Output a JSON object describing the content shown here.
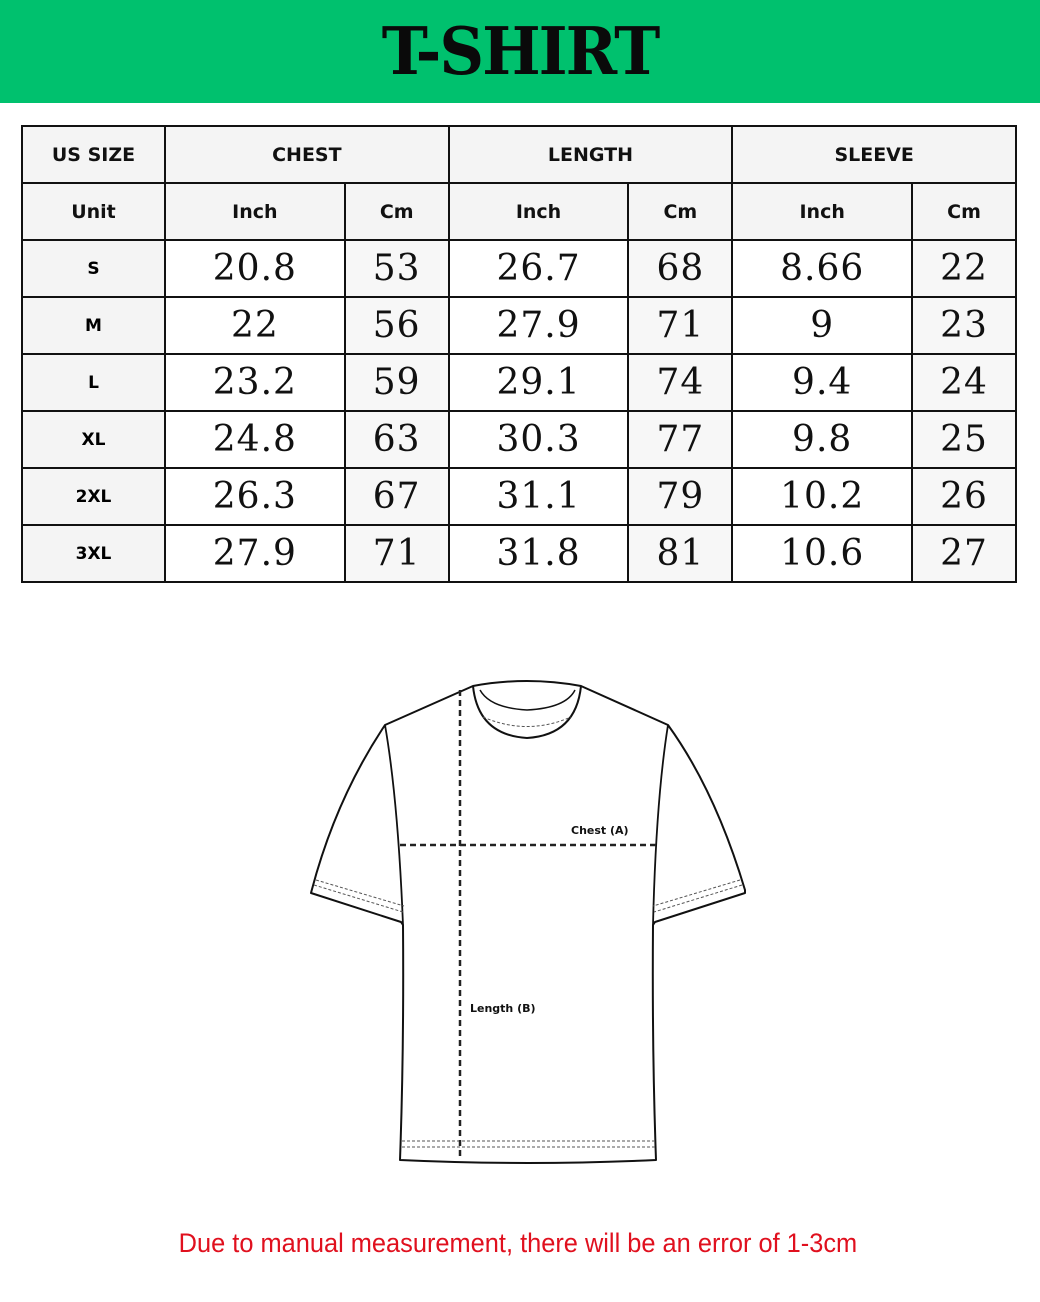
{
  "title": "T-SHIRT",
  "colors": {
    "banner": "#00c16e",
    "note": "#e0101e"
  },
  "table": {
    "header": {
      "size": "US SIZE",
      "chest": "CHEST",
      "length": "LENGTH",
      "sleeve": "SLEEVE"
    },
    "units": [
      "Unit",
      "Inch",
      "Cm",
      "Inch",
      "Cm",
      "Inch",
      "Cm"
    ],
    "rows": [
      {
        "size": "S",
        "values": [
          "20.8",
          "53",
          "26.7",
          "68",
          "8.66",
          "22"
        ]
      },
      {
        "size": "M",
        "values": [
          "22",
          "56",
          "27.9",
          "71",
          "9",
          "23"
        ]
      },
      {
        "size": "L",
        "values": [
          "23.2",
          "59",
          "29.1",
          "74",
          "9.4",
          "24"
        ]
      },
      {
        "size": "XL",
        "values": [
          "24.8",
          "63",
          "30.3",
          "77",
          "9.8",
          "25"
        ]
      },
      {
        "size": "2XL",
        "values": [
          "26.3",
          "67",
          "31.1",
          "79",
          "10.2",
          "26"
        ]
      },
      {
        "size": "3XL",
        "values": [
          "27.9",
          "71",
          "31.8",
          "81",
          "10.6",
          "27"
        ]
      }
    ]
  },
  "diagram": {
    "chest_label": "Chest (A)",
    "length_label": "Length (B)"
  },
  "note": "Due to manual measurement, there will be an error of 1-3cm"
}
